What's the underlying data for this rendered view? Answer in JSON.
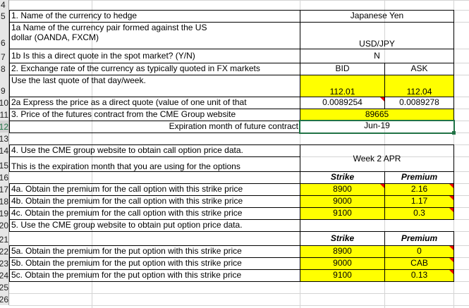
{
  "row_numbers": [
    "4",
    "5",
    "6",
    "7",
    "8",
    "9",
    "10",
    "11",
    "12",
    "13",
    "14",
    "15",
    "16",
    "17",
    "18",
    "19",
    "20",
    "21",
    "22",
    "23",
    "24",
    "25",
    "26"
  ],
  "selected_cell": "Jun-19",
  "rows": {
    "r5": {
      "label": "1. Name of the currency to hedge",
      "value": "Japanese Yen"
    },
    "r6": {
      "label": "1a Name of the currency pair formed against the US dollar (OANDA, FXCM)",
      "value": "USD/JPY"
    },
    "r7": {
      "label": "1b Is this a direct quote in the spot market? (Y/N)",
      "value": "N"
    },
    "r8": {
      "label": "2. Exchange rate of the currency as typically quoted in FX markets",
      "bid": "BID",
      "ask": "ASK"
    },
    "r9": {
      "label": "Use the last quote of that day/week.",
      "bid": "112.01",
      "ask": "112.04"
    },
    "r10": {
      "label": "2a Express the price as a direct quote (value of one unit of that",
      "bid": "0.0089254",
      "ask": "0.0089278"
    },
    "r11": {
      "label": "3. Price of the futures contract from the CME Group website",
      "value": "89665"
    },
    "r12": {
      "label": "Expiration month of future contract",
      "value": "Jun-19"
    },
    "r14": {
      "label": "4. Use the CME group website to obtain call option price data."
    },
    "r15": {
      "label": "This is the expiration month that you are using for the options",
      "value": "Week 2 APR"
    },
    "r16": {
      "strike": "Strike",
      "premium": "Premium"
    },
    "r17": {
      "label": "4a. Obtain the premium for the call option with this strike price",
      "strike": "8900",
      "premium": "2.16"
    },
    "r18": {
      "label": "4b. Obtain the premium for the call option with this strike price",
      "strike": "9000",
      "premium": "1.17"
    },
    "r19": {
      "label": "4c. Obtain the premium for the call option with this strike price",
      "strike": "9100",
      "premium": "0.3"
    },
    "r20": {
      "label": "5. Use the CME group website to obtain put option price data."
    },
    "r21": {
      "strike": "Strike",
      "premium": "Premium"
    },
    "r22": {
      "label": "5a. Obtain the premium for the put option with this strike price",
      "strike": "8900",
      "premium": "0"
    },
    "r23": {
      "label": "5b. Obtain the premium for the put option with this strike price",
      "strike": "9000",
      "premium": "CAB"
    },
    "r24": {
      "label": "5c. Obtain the premium for the put option with this strike price",
      "strike": "9100",
      "premium": "0.13"
    }
  },
  "colors": {
    "highlight": "#ffff00",
    "comment_marker": "#ee0000",
    "selection": "#217346"
  }
}
